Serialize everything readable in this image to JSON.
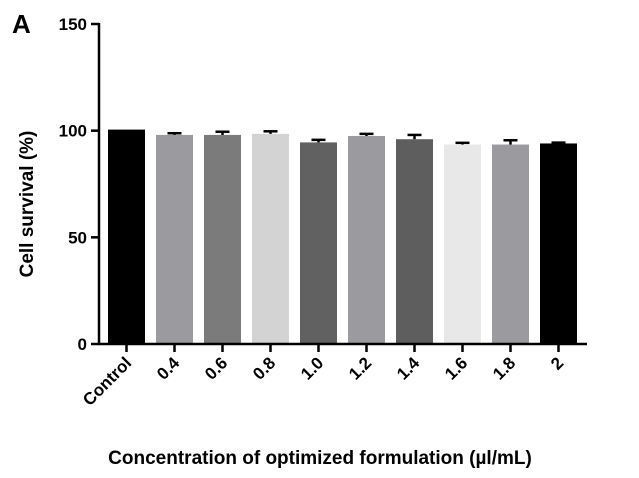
{
  "chart_data": {
    "type": "bar",
    "panel_label": "A",
    "title": "",
    "xlabel": "Concentration of optimized formulation  (µl/mL)",
    "ylabel": "Cell survival (%)",
    "ylim": [
      0,
      150
    ],
    "yticks": [
      0,
      50,
      100,
      150
    ],
    "grid": false,
    "categories": [
      "Control",
      "0.4",
      "0.6",
      "0.8",
      "1.0",
      "1.2",
      "1.4",
      "1.6",
      "1.8",
      "2"
    ],
    "values": [
      100.5,
      98,
      98,
      98.5,
      94.5,
      97.5,
      96,
      93.5,
      93.5,
      94
    ],
    "errors": [
      0,
      0.8,
      1.5,
      1.2,
      1.2,
      1.0,
      2.0,
      0.8,
      2.0,
      0.4
    ],
    "colors": [
      "#000000",
      "#9b9a9f",
      "#7b7b7b",
      "#d3d3d3",
      "#616161",
      "#9b9a9f",
      "#5e5e5e",
      "#e8e8e8",
      "#9b9a9f",
      "#000000"
    ]
  }
}
